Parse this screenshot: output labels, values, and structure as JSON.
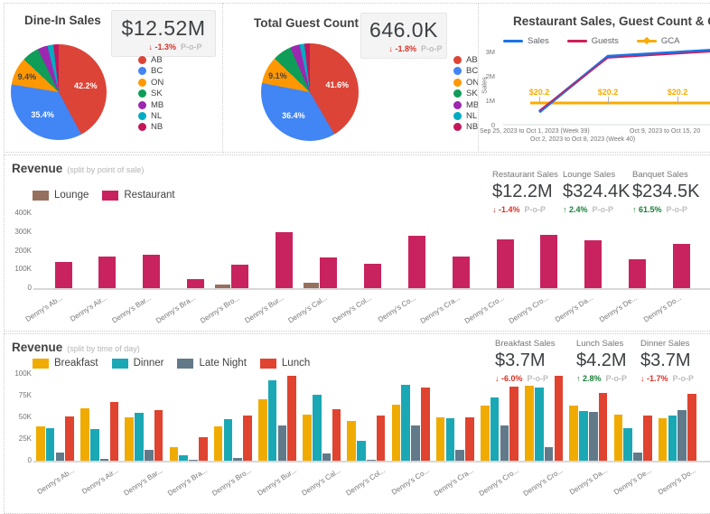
{
  "colors": {
    "ab": "#DB4437",
    "bc": "#4285F4",
    "on": "#FF9800",
    "sk": "#0F9D58",
    "mb": "#9C27B0",
    "nl": "#00ACC1",
    "nb": "#C2185B",
    "lounge": "#96705E",
    "restaurant": "#C8235F",
    "breakfast": "#F0AB00",
    "dinner": "#1BA8B5",
    "late_night": "#62798A",
    "lunch": "#E0432F",
    "sales": "#1A73E8",
    "guests": "#CE2058",
    "gca": "#F9AB00",
    "negative": "#D93025",
    "positive": "#188038",
    "pop_gray": "#BDBDBD"
  },
  "panels": {
    "dine_in": {
      "title": "Dine-In Sales",
      "kpi": {
        "value": "$12.52M",
        "delta": "-1.3%",
        "dir": "down",
        "pop": "P-o-P"
      }
    },
    "guest_count": {
      "title": "Total Guest Count",
      "kpi": {
        "value": "646.0K",
        "delta": "-1.8%",
        "dir": "down",
        "pop": "P-o-P"
      }
    },
    "line": {
      "title": "Restaurant Sales, Guest Count & GCA"
    },
    "revenue_pos": {
      "title": "Revenue",
      "subtitle": "(split by point of sale)",
      "kpis": [
        {
          "label": "Restaurant Sales",
          "value": "$12.2M",
          "delta": "-1.4%",
          "dir": "down",
          "pop": "P-o-P"
        },
        {
          "label": "Lounge Sales",
          "value": "$324.4K",
          "delta": "2.4%",
          "dir": "up",
          "pop": "P-o-P"
        },
        {
          "label": "Banquet Sales",
          "value": "$234.5K",
          "delta": "61.5%",
          "dir": "up",
          "pop": "P-o-P"
        }
      ]
    },
    "revenue_tod": {
      "title": "Revenue",
      "subtitle": "(split by time of day)",
      "kpis": [
        {
          "label": "Breakfast Sales",
          "value": "$3.7M",
          "delta": "-6.0%",
          "dir": "down",
          "pop": "P-o-P"
        },
        {
          "label": "Lunch Sales",
          "value": "$4.2M",
          "delta": "2.8%",
          "dir": "up",
          "pop": "P-o-P"
        },
        {
          "label": "Dinner Sales",
          "value": "$3.7M",
          "delta": "-1.7%",
          "dir": "down",
          "pop": "P-o-P"
        }
      ]
    }
  },
  "chart_data": [
    {
      "id": "dine-in-pie",
      "type": "pie",
      "title": "Dine-In Sales",
      "labels": [
        "AB",
        "BC",
        "ON",
        "SK",
        "MB",
        "NL",
        "NB"
      ],
      "values": [
        42.2,
        35.4,
        9.4,
        5.8,
        3.4,
        2.0,
        1.8
      ],
      "pct_labels": [
        "42.2%",
        "35.4%",
        "9.4%",
        null,
        null,
        null,
        null
      ],
      "color_keys": [
        "ab",
        "bc",
        "on",
        "sk",
        "mb",
        "nl",
        "nb"
      ]
    },
    {
      "id": "guest-count-pie",
      "type": "pie",
      "title": "Total Guest Count",
      "labels": [
        "AB",
        "BC",
        "ON",
        "SK",
        "MB",
        "NL",
        "NB"
      ],
      "values": [
        41.6,
        36.4,
        9.1,
        6.3,
        3.2,
        1.6,
        1.8
      ],
      "pct_labels": [
        "41.6%",
        "36.4%",
        "9.1%",
        null,
        null,
        null,
        null
      ],
      "color_keys": [
        "ab",
        "bc",
        "on",
        "sk",
        "mb",
        "nl",
        "nb"
      ]
    },
    {
      "id": "sales-guests-gca",
      "type": "line",
      "title": "Restaurant Sales, Guest Count & GCA",
      "ylabel": "Sales",
      "yticks": [
        "0",
        "1M",
        "2M",
        "3M"
      ],
      "x": [
        "Sep 25, 2023 to Oct 1, 2023 (Week 39)",
        "Oct 2, 2023 to Oct 8, 2023 (Week 40)",
        "Oct 9, 2023 to Oct 15, 20"
      ],
      "series": [
        {
          "name": "Sales",
          "color_key": "sales",
          "values_m": [
            0.52,
            2.8,
            2.97
          ]
        },
        {
          "name": "Guests",
          "color_key": "guests",
          "values_m": [
            0.58,
            2.74,
            2.91
          ]
        },
        {
          "name": "GCA",
          "color_key": "gca",
          "axis": "right",
          "values": [
            20.2,
            20.2,
            20.2
          ],
          "data_labels": [
            "$20.2",
            "$20.2",
            "$20.2"
          ]
        }
      ]
    },
    {
      "id": "revenue-by-pos",
      "type": "bar",
      "title": "Revenue (split by point of sale)",
      "yticks": [
        "0",
        "100K",
        "200K",
        "300K",
        "400K"
      ],
      "ymax_k": 400,
      "categories": [
        "Denny's Ab...",
        "Denny's Air...",
        "Denny's Bar...",
        "Denny's Bra...",
        "Denny's Bro...",
        "Denny's Bur...",
        "Denny's Cal...",
        "Denny's Col...",
        "Denny's Co...",
        "Denny's Cra...",
        "Denny's Cro...",
        "Denny's Cro...",
        "Denny's Da...",
        "Denny's De...",
        "Denny's Do..."
      ],
      "edge_label": "De...",
      "series": [
        {
          "name": "Lounge",
          "color_key": "lounge",
          "values_k": [
            0,
            0,
            0,
            0,
            18,
            0,
            30,
            0,
            0,
            0,
            0,
            0,
            0,
            0,
            0
          ]
        },
        {
          "name": "Restaurant",
          "color_key": "restaurant",
          "values_k": [
            140,
            168,
            178,
            50,
            125,
            300,
            165,
            130,
            280,
            170,
            260,
            285,
            255,
            155,
            235
          ]
        }
      ]
    },
    {
      "id": "revenue-by-tod",
      "type": "bar",
      "title": "Revenue (split by time of day)",
      "yticks": [
        "0",
        "25K",
        "50K",
        "75K",
        "100K"
      ],
      "ymax_k": 100,
      "categories": [
        "Denny's Ab...",
        "Denny's Air...",
        "Denny's Bar...",
        "Denny's Bra...",
        "Denny's Bro...",
        "Denny's Bur...",
        "Denny's Cal...",
        "Denny's Col...",
        "Denny's Co...",
        "Denny's Cra...",
        "Denny's Cro...",
        "Denny's Cro...",
        "Denny's Da...",
        "Denny's De...",
        "Denny's Do..."
      ],
      "series": [
        {
          "name": "Breakfast",
          "color_key": "breakfast",
          "values_k": [
            40,
            60,
            50,
            16,
            40,
            71,
            53,
            46,
            65,
            50,
            64,
            86,
            64,
            53,
            49
          ]
        },
        {
          "name": "Dinner",
          "color_key": "dinner",
          "values_k": [
            38,
            36,
            55,
            6,
            48,
            93,
            76,
            23,
            88,
            49,
            73,
            84,
            57,
            38,
            52
          ]
        },
        {
          "name": "Late Night",
          "color_key": "late_night",
          "values_k": [
            9,
            2,
            13,
            1,
            3,
            41,
            8,
            1,
            41,
            13,
            41,
            16,
            56,
            9,
            58
          ]
        },
        {
          "name": "Lunch",
          "color_key": "lunch",
          "values_k": [
            51,
            68,
            58,
            27,
            52,
            98,
            59,
            52,
            84,
            50,
            85,
            98,
            78,
            52,
            77
          ]
        }
      ]
    }
  ]
}
